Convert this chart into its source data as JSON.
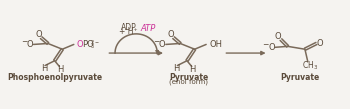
{
  "bg_color": "#f5f3f0",
  "bond_color": "#7a6a5a",
  "text_color": "#5a4a3a",
  "magenta_color": "#cc3399",
  "label_pep": "Phosphoenolpyruvate",
  "label_pyr_enol": "Pyruvate",
  "label_pyr_enol_sub": "(enol form)",
  "label_pyr": "Pyruvate",
  "adp_text": "ADP",
  "h_text": "+ H⁺",
  "atp_text": "ATP",
  "minus_sign": "−",
  "opo_text": "OPO",
  "oh_text": "OH",
  "ch3_text": "CH",
  "o_text": "O"
}
